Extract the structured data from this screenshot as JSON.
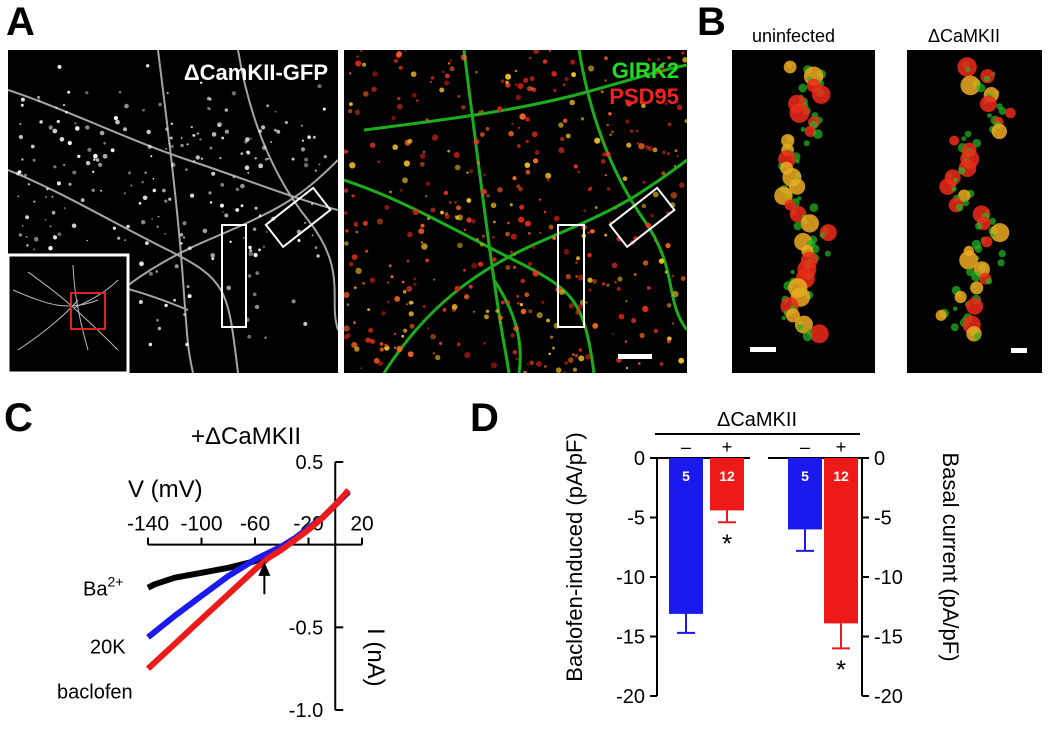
{
  "panels": {
    "A": {
      "label": "A",
      "gfp_label": "ΔCamKII-GFP",
      "channel_green": "GIRK2",
      "channel_red": "PSD95",
      "colors": {
        "green": "#22dd22",
        "red": "#ee2222",
        "white": "#ffffff",
        "inset_box": "#dd2222"
      }
    },
    "B": {
      "label": "B",
      "left_title": "uninfected",
      "right_title": "ΔCaMKII"
    },
    "C": {
      "label": "C"
    },
    "D": {
      "label": "D"
    }
  },
  "chart_data": [
    {
      "type": "line",
      "panel": "C",
      "title": "+ΔCaMKII",
      "xlabel": "V (mV)",
      "ylabel": "I (nA)",
      "xlim": [
        -140,
        20
      ],
      "ylim": [
        -1.0,
        0.5
      ],
      "x_ticks": [
        -140,
        -100,
        -60,
        -20,
        20
      ],
      "y_ticks": [
        0.5,
        -0.5,
        -1.0
      ],
      "y_tick_labels": [
        "0.5",
        "-0.5",
        "-1.0"
      ],
      "annotation": "reversal arrow at ~ -53 mV",
      "arrow_x": -53,
      "series": [
        {
          "name": "Ba2+",
          "color": "#000000",
          "x": [
            -140,
            -135,
            -120,
            -100,
            -80,
            -60,
            -50,
            -40,
            -30,
            -20,
            -10,
            0,
            10
          ],
          "y": [
            -0.26,
            -0.24,
            -0.2,
            -0.17,
            -0.14,
            -0.1,
            -0.06,
            -0.02,
            0.04,
            0.1,
            0.16,
            0.24,
            0.32
          ]
        },
        {
          "name": "20K",
          "color": "#1a1aee",
          "x": [
            -140,
            -120,
            -100,
            -80,
            -60,
            -50,
            -40,
            -30,
            -20,
            -10,
            0,
            10
          ],
          "y": [
            -0.56,
            -0.43,
            -0.31,
            -0.19,
            -0.09,
            -0.05,
            -0.01,
            0.04,
            0.1,
            0.16,
            0.24,
            0.32
          ]
        },
        {
          "name": "baclofen",
          "color": "#ee1a1a",
          "x": [
            -140,
            -120,
            -100,
            -80,
            -60,
            -50,
            -40,
            -30,
            -20,
            -10,
            0,
            10
          ],
          "y": [
            -0.75,
            -0.6,
            -0.45,
            -0.3,
            -0.15,
            -0.08,
            -0.03,
            0.03,
            0.09,
            0.16,
            0.24,
            0.33
          ]
        }
      ]
    },
    {
      "type": "bar",
      "panel": "D",
      "group_label": "ΔCaMKII",
      "left_ylabel": "Baclofen-induced (pA/pF)",
      "right_ylabel": "Basal current (pA/pF)",
      "ylim": [
        -20,
        0
      ],
      "y_ticks": [
        0,
        -5,
        -10,
        -15,
        -20
      ],
      "groups": [
        {
          "name": "Baclofen-induced",
          "bars": [
            {
              "sign": "–",
              "value": -13.1,
              "error": 1.6,
              "n": "5",
              "color": "#1a1aee",
              "star": ""
            },
            {
              "sign": "+",
              "value": -4.4,
              "error": 1.0,
              "n": "12",
              "color": "#ee1a1a",
              "star": "*"
            }
          ]
        },
        {
          "name": "Basal current",
          "bars": [
            {
              "sign": "–",
              "value": -6.0,
              "error": 1.8,
              "n": "5",
              "color": "#1a1aee",
              "star": ""
            },
            {
              "sign": "+",
              "value": -13.9,
              "error": 2.1,
              "n": "12",
              "color": "#ee1a1a",
              "star": "*"
            }
          ]
        }
      ]
    }
  ]
}
